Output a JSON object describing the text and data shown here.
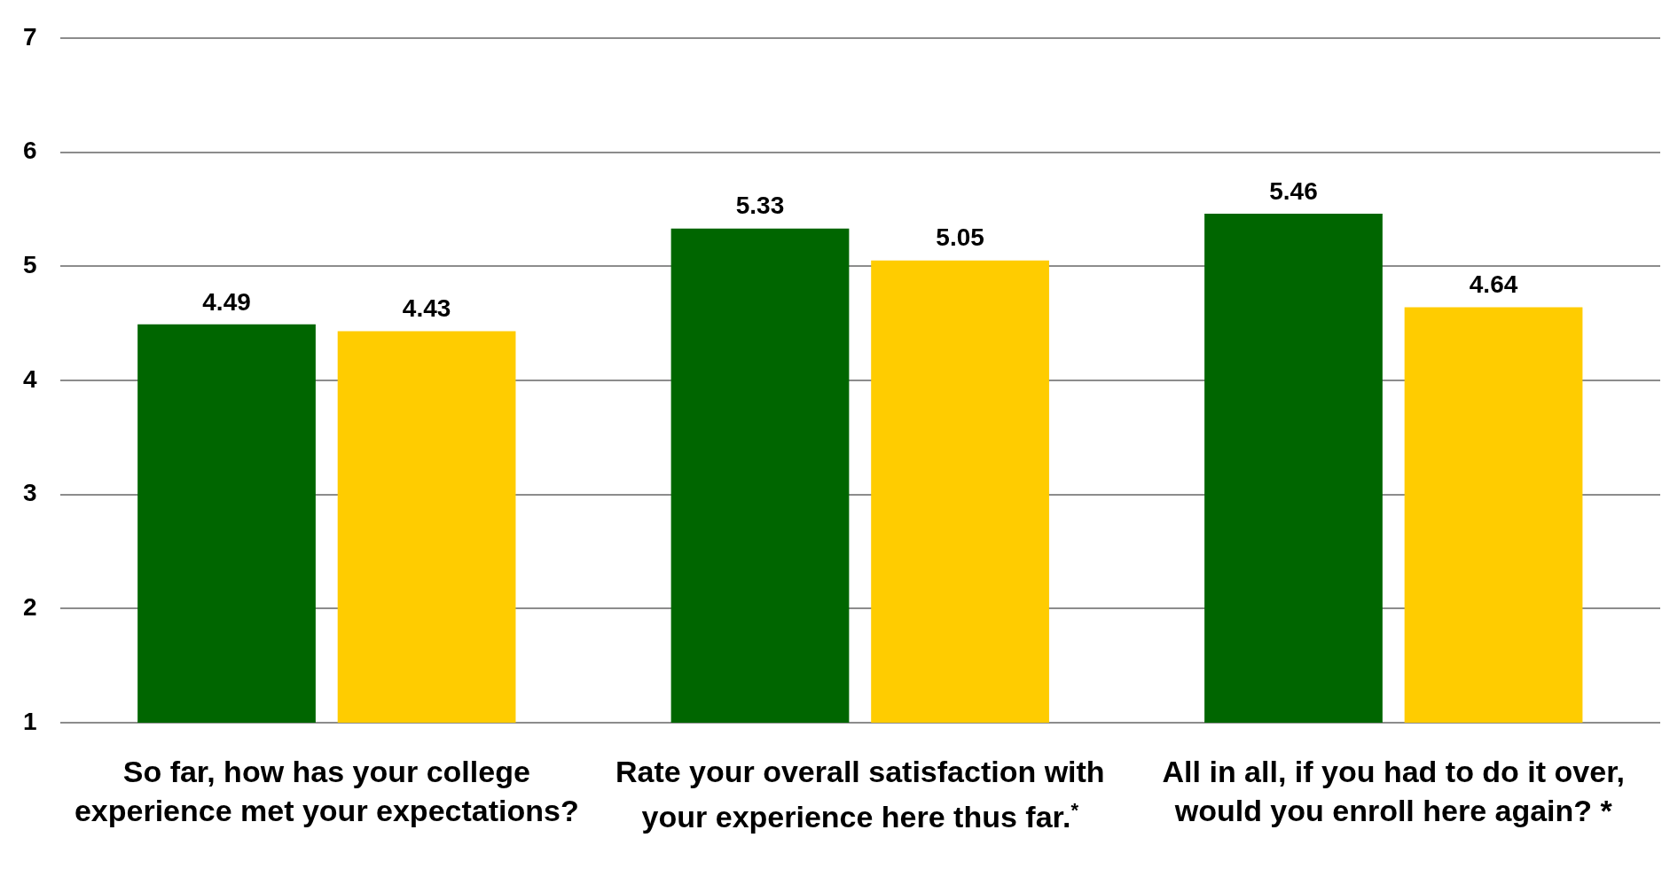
{
  "chart_data": {
    "type": "bar",
    "categories": [
      "So far, how has your college experience met your expectations?",
      "Rate your overall satisfaction with your experience here thus far.$^{*}$",
      "All in all, if you had to do it over, would you enroll here again? *"
    ],
    "series": [
      {
        "color": "#006600",
        "values": [
          4.49,
          5.33,
          5.46
        ]
      },
      {
        "color": "#ffcc00",
        "values": [
          4.43,
          5.05,
          4.64
        ]
      }
    ],
    "ylim": [
      1,
      7
    ],
    "yticks": [
      1,
      2,
      3,
      4,
      5,
      6,
      7
    ],
    "grid": "y",
    "legend": false,
    "data_labels": true
  }
}
